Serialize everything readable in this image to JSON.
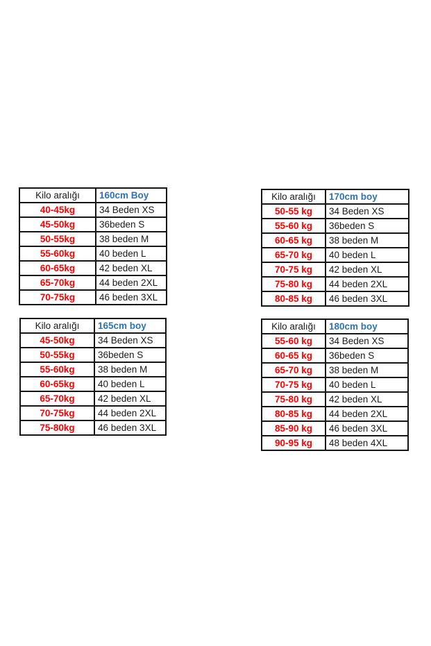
{
  "canvas": {
    "background": "#ffffff"
  },
  "styles": {
    "weight_text_color": "#fe0000",
    "height_header_color": "#2e74b5",
    "size_text_color": "#1a1a1a",
    "border_color": "#151515"
  },
  "chart_data": [
    {
      "type": "table",
      "position": "top-left",
      "columns": [
        "Kilo aralığı",
        "160cm Boy"
      ],
      "rows": [
        [
          "40-45kg",
          "34 Beden XS"
        ],
        [
          "45-50kg",
          "36beden S"
        ],
        [
          "50-55kg",
          "38 beden M"
        ],
        [
          "55-60kg",
          "40 beden L"
        ],
        [
          "60-65kg",
          "42 beden XL"
        ],
        [
          "65-70kg",
          "44 beden 2XL"
        ],
        [
          "70-75kg",
          "46 beden 3XL"
        ]
      ]
    },
    {
      "type": "table",
      "position": "top-right",
      "columns": [
        "Kilo aralığı",
        "170cm boy"
      ],
      "rows": [
        [
          "50-55 kg",
          "34 Beden XS"
        ],
        [
          "55-60 kg",
          "36beden S"
        ],
        [
          "60-65 kg",
          "38 beden M"
        ],
        [
          "65-70 kg",
          "40 beden L"
        ],
        [
          "70-75 kg",
          "42 beden XL"
        ],
        [
          "75-80 kg",
          "44 beden 2XL"
        ],
        [
          "80-85 kg",
          "46 beden 3XL"
        ]
      ]
    },
    {
      "type": "table",
      "position": "bottom-left",
      "columns": [
        "Kilo aralığı",
        "165cm boy"
      ],
      "rows": [
        [
          "45-50kg",
          "34 Beden XS"
        ],
        [
          "50-55kg",
          "36beden S"
        ],
        [
          "55-60kg",
          "38 beden M"
        ],
        [
          "60-65kg",
          "40 beden L"
        ],
        [
          "65-70kg",
          "42 beden XL"
        ],
        [
          "70-75kg",
          "44 beden 2XL"
        ],
        [
          "75-80kg",
          "46 beden 3XL"
        ]
      ]
    },
    {
      "type": "table",
      "position": "bottom-right",
      "columns": [
        "Kilo aralığı",
        "180cm boy"
      ],
      "rows": [
        [
          "55-60 kg",
          "34 Beden XS"
        ],
        [
          "60-65 kg",
          "36beden S"
        ],
        [
          "65-70 kg",
          "38 beden M"
        ],
        [
          "70-75 kg",
          "40 beden L"
        ],
        [
          "75-80 kg",
          "42 beden XL"
        ],
        [
          "80-85 kg",
          "44 beden 2XL"
        ],
        [
          "85-90 kg",
          "46 beden 3XL"
        ],
        [
          "90-95 kg",
          "48 beden 4XL"
        ]
      ]
    }
  ]
}
